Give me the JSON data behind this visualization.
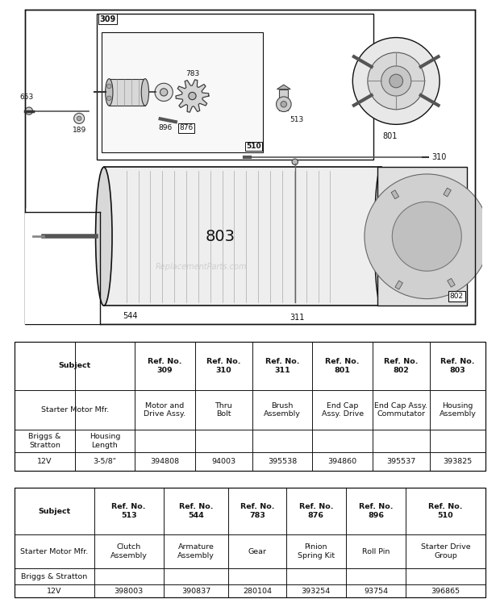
{
  "bg_color": "#ffffff",
  "table1": {
    "col_headers": [
      "Subject",
      "Ref. No.\n309",
      "Ref. No.\n310",
      "Ref. No.\n311",
      "Ref. No.\n801",
      "Ref. No.\n802",
      "Ref. No.\n803"
    ],
    "row1": [
      "Starter Motor Mfr.",
      "Motor and\nDrive Assy.",
      "Thru\nBolt",
      "Brush\nAssembly",
      "End Cap\nAssy. Drive",
      "End Cap Assy.\nCommutator",
      "Housing\nAssembly"
    ],
    "row2_c1": "Briggs &\nStratton",
    "row2_c2": "Housing\nLength",
    "row3_c1": "12V",
    "row3_c2": "3-5/8\"",
    "row3_data": [
      "394808",
      "94003",
      "395538",
      "394860",
      "395537",
      "393825"
    ]
  },
  "table2": {
    "col_headers": [
      "Subject",
      "Ref. No.\n513",
      "Ref. No.\n544",
      "Ref. No.\n783",
      "Ref. No.\n876",
      "Ref. No.\n896",
      "Ref. No.\n510"
    ],
    "row1": [
      "Starter Motor Mfr.",
      "Clutch\nAssembly",
      "Armature\nAssembly",
      "Gear",
      "Pinion\nSpring Kit",
      "Roll Pin",
      "Starter Drive\nGroup"
    ],
    "row2_c1": "Briggs & Stratton",
    "row3_c1": "12V",
    "row3_data": [
      "398003",
      "390837",
      "280104",
      "393254",
      "93754",
      "396865"
    ]
  },
  "watermark": "ReplacementParts.com"
}
